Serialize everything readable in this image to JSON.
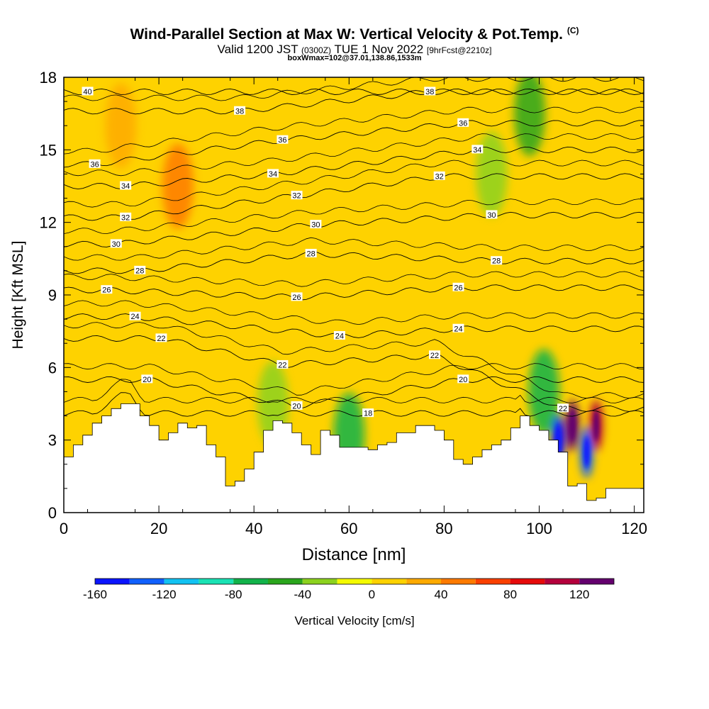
{
  "header": {
    "title": "Wind-Parallel Section at Max W: Vertical Velocity & Pot.Temp.",
    "title_tag": "(C)",
    "valid_prefix": "Valid 1200 JST",
    "valid_utc": "(0300Z)",
    "valid_date": "TUE 1 Nov 2022",
    "forecast": "[9hrFcst@2210z]",
    "box_info": "boxWmax=102@37.01,138.86,1533m"
  },
  "colorbar": {
    "label": "Vertical Velocity [cm/s]",
    "bins": [
      -160,
      -140,
      -120,
      -100,
      -80,
      -60,
      -40,
      -20,
      0,
      20,
      40,
      60,
      80,
      100,
      120,
      140
    ],
    "colors": [
      "#0a14ff",
      "#1060ff",
      "#12c2f2",
      "#1ae2b4",
      "#12b34a",
      "#2aa61c",
      "#8cd21e",
      "#f4fa00",
      "#fed200",
      "#feaa00",
      "#fe7a00",
      "#fa4000",
      "#e60a0a",
      "#b4003c",
      "#64006e"
    ],
    "tick_labels": [
      "-160",
      "-120",
      "-80",
      "-40",
      "0",
      "40",
      "80",
      "120"
    ]
  },
  "chart_data": {
    "type": "heatmap",
    "title": "Wind-Parallel Section at Max W: Vertical Velocity & Pot.Temp.",
    "xlabel": "Distance [nm]",
    "ylabel": "Height [Kft MSL]",
    "xlim": [
      0,
      122
    ],
    "ylim": [
      0,
      18
    ],
    "x_ticks": [
      0,
      20,
      40,
      60,
      80,
      100,
      120
    ],
    "y_ticks": [
      0,
      3,
      6,
      9,
      12,
      15,
      18
    ],
    "terrain_kft": {
      "x": [
        0,
        2,
        4,
        6,
        8,
        10,
        12,
        14,
        16,
        18,
        20,
        22,
        24,
        26,
        28,
        30,
        32,
        34,
        36,
        38,
        40,
        42,
        44,
        46,
        48,
        50,
        52,
        54,
        56,
        58,
        60,
        62,
        64,
        66,
        68,
        70,
        72,
        74,
        76,
        78,
        80,
        82,
        84,
        86,
        88,
        90,
        92,
        94,
        96,
        98,
        100,
        102,
        104,
        106,
        108,
        110,
        112,
        114,
        116,
        118,
        120,
        122
      ],
      "y": [
        2.3,
        2.8,
        3.2,
        3.7,
        4.0,
        4.3,
        4.5,
        4.5,
        4.0,
        3.6,
        3.0,
        3.3,
        3.7,
        3.5,
        3.6,
        2.8,
        2.3,
        1.1,
        1.3,
        1.8,
        2.5,
        3.4,
        3.8,
        3.7,
        3.3,
        2.8,
        2.4,
        3.4,
        3.2,
        2.7,
        2.7,
        2.7,
        2.6,
        2.8,
        2.9,
        3.3,
        3.3,
        3.6,
        3.6,
        3.4,
        3.0,
        2.2,
        2.0,
        2.3,
        2.6,
        2.8,
        3.0,
        3.5,
        4.0,
        3.6,
        3.4,
        3.0,
        2.5,
        1.1,
        1.2,
        0.5,
        0.6,
        1.0,
        1.0,
        1.0,
        1.0,
        1.0
      ]
    },
    "vertical_velocity_cm_s": {
      "background": 0,
      "features": [
        {
          "x": 24,
          "y": 13.5,
          "value": 45
        },
        {
          "x": 12,
          "y": 16,
          "value": 35
        },
        {
          "x": 44,
          "y": 4.5,
          "value": -35
        },
        {
          "x": 60,
          "y": 3.2,
          "value": -70
        },
        {
          "x": 90,
          "y": 14,
          "value": -35
        },
        {
          "x": 98,
          "y": 16.5,
          "value": -45
        },
        {
          "x": 101,
          "y": 5,
          "value": -80
        },
        {
          "x": 104,
          "y": 3,
          "value": -160
        },
        {
          "x": 107,
          "y": 3.6,
          "value": 130
        },
        {
          "x": 110,
          "y": 2.5,
          "value": -140
        },
        {
          "x": 112,
          "y": 3.6,
          "value": 110
        }
      ]
    },
    "potential_temperature_C": {
      "levels": [
        18,
        20,
        22,
        24,
        26,
        28,
        30,
        32,
        34,
        36,
        38,
        40
      ],
      "contour_labels": [
        {
          "text": "40",
          "x": 5,
          "y": 17.4
        },
        {
          "text": "38",
          "x": 37,
          "y": 16.6
        },
        {
          "text": "38",
          "x": 77,
          "y": 17.4
        },
        {
          "text": "36",
          "x": 6.5,
          "y": 14.4
        },
        {
          "text": "36",
          "x": 46,
          "y": 15.4
        },
        {
          "text": "36",
          "x": 84,
          "y": 16.1
        },
        {
          "text": "34",
          "x": 13,
          "y": 13.5
        },
        {
          "text": "34",
          "x": 44,
          "y": 14.0
        },
        {
          "text": "34",
          "x": 87,
          "y": 15.0
        },
        {
          "text": "32",
          "x": 13,
          "y": 12.2
        },
        {
          "text": "32",
          "x": 49,
          "y": 13.1
        },
        {
          "text": "32",
          "x": 79,
          "y": 13.9
        },
        {
          "text": "30",
          "x": 11,
          "y": 11.1
        },
        {
          "text": "30",
          "x": 53,
          "y": 11.9
        },
        {
          "text": "30",
          "x": 90,
          "y": 12.3
        },
        {
          "text": "28",
          "x": 16,
          "y": 10.0
        },
        {
          "text": "28",
          "x": 52,
          "y": 10.7
        },
        {
          "text": "28",
          "x": 91,
          "y": 10.4
        },
        {
          "text": "26",
          "x": 9,
          "y": 9.2
        },
        {
          "text": "26",
          "x": 49,
          "y": 8.9
        },
        {
          "text": "26",
          "x": 83,
          "y": 9.3
        },
        {
          "text": "24",
          "x": 15,
          "y": 8.1
        },
        {
          "text": "24",
          "x": 58,
          "y": 7.3
        },
        {
          "text": "24",
          "x": 83,
          "y": 7.6
        },
        {
          "text": "22",
          "x": 20.5,
          "y": 7.2
        },
        {
          "text": "22",
          "x": 46,
          "y": 6.1
        },
        {
          "text": "22",
          "x": 78,
          "y": 6.5
        },
        {
          "text": "22",
          "x": 105,
          "y": 4.3
        },
        {
          "text": "20",
          "x": 17.5,
          "y": 5.5
        },
        {
          "text": "20",
          "x": 49,
          "y": 4.4
        },
        {
          "text": "20",
          "x": 84,
          "y": 5.5
        },
        {
          "text": "18",
          "x": 64,
          "y": 4.1
        }
      ]
    }
  }
}
